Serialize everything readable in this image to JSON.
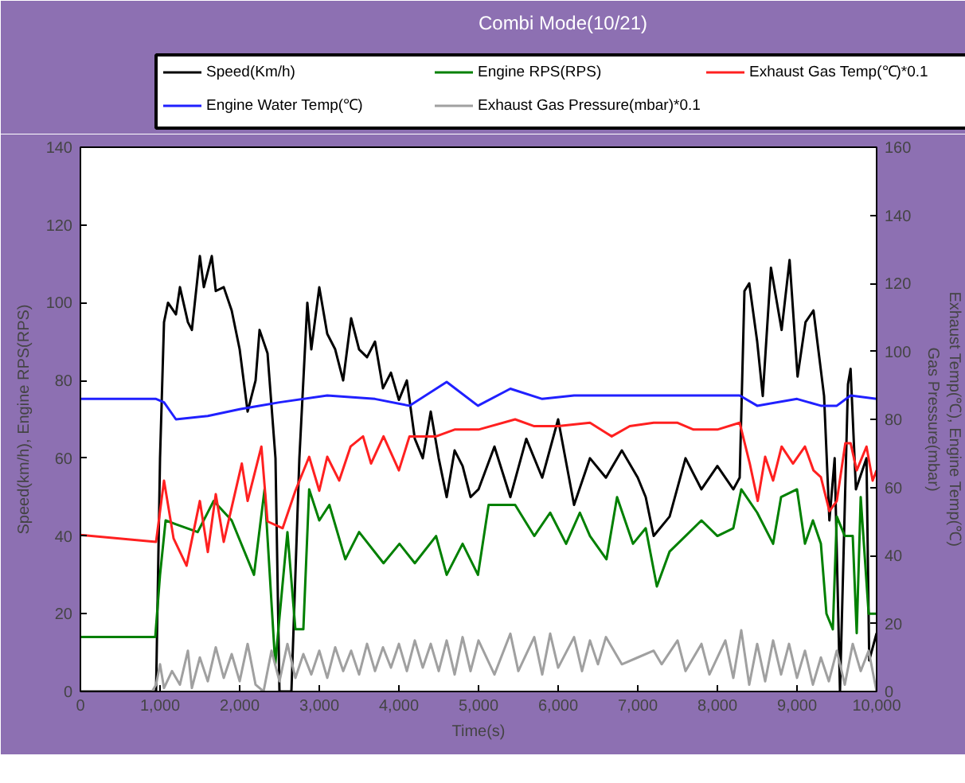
{
  "chart_data": {
    "type": "line",
    "title": "Combi Mode(10/21)",
    "xlabel": "Time(s)",
    "ylabel": "Speed(km/h), Engine RPS(RPS)",
    "y2label": "Exhaust Temp(℃), Engine Temp(℃)\nGas Pressure(mbar)",
    "xlim": [
      0,
      10000
    ],
    "xticks": [
      0,
      {
        "value": 1000,
        "label": "1,000"
      },
      {
        "value": 2000,
        "label": "2,000"
      },
      {
        "value": 3000,
        "label": "3,000"
      },
      {
        "value": 4000,
        "label": "4,000"
      },
      {
        "value": 5000,
        "label": "5,000"
      },
      {
        "value": 6000,
        "label": "6,000"
      },
      {
        "value": 7000,
        "label": "7,000"
      },
      {
        "value": 8000,
        "label": "8,000"
      },
      {
        "value": 9000,
        "label": "9,000"
      },
      {
        "value": 10000,
        "label": "10,000"
      }
    ],
    "ylim": [
      0,
      140
    ],
    "yticks": [
      0,
      20,
      40,
      60,
      80,
      100,
      120,
      140
    ],
    "y2lim": [
      0,
      160
    ],
    "y2ticks": [
      0,
      20,
      40,
      60,
      80,
      100,
      120,
      140,
      160
    ],
    "grid": false,
    "legend": "top",
    "marker": "none",
    "line_style": "solid",
    "series": [
      {
        "name": "Speed(Km/h)",
        "color": "#000000",
        "x": [
          0,
          950,
          1000,
          1050,
          1100,
          1200,
          1250,
          1350,
          1400,
          1500,
          1550,
          1650,
          1700,
          1800,
          1900,
          2000,
          2100,
          2200,
          2250,
          2350,
          2450,
          2500,
          2650,
          2750,
          2850,
          2900,
          3000,
          3100,
          3200,
          3300,
          3400,
          3500,
          3600,
          3700,
          3800,
          3900,
          4000,
          4100,
          4200,
          4300,
          4400,
          4500,
          4600,
          4700,
          4800,
          4900,
          5000,
          5200,
          5400,
          5600,
          5800,
          6000,
          6200,
          6400,
          6600,
          6800,
          7000,
          7100,
          7200,
          7400,
          7600,
          7800,
          8000,
          8200,
          8280,
          8340,
          8400,
          8500,
          8570,
          8673,
          8807,
          8907,
          9007,
          9107,
          9207,
          9340,
          9407,
          9473,
          9540,
          9640,
          9673,
          9740,
          9873,
          9907,
          10000
        ],
        "values": [
          0,
          0,
          60,
          95,
          100,
          97,
          104,
          95,
          93,
          112,
          104,
          112,
          103,
          104,
          98,
          88,
          72,
          80,
          93,
          87,
          60,
          0,
          0,
          60,
          100,
          88,
          104,
          92,
          88,
          80,
          96,
          88,
          86,
          90,
          78,
          82,
          75,
          80,
          65,
          60,
          72,
          60,
          50,
          62,
          58,
          50,
          52,
          63,
          50,
          65,
          55,
          70,
          48,
          60,
          55,
          62,
          55,
          50,
          40,
          45,
          60,
          52,
          58,
          52,
          55,
          103,
          105,
          90,
          76,
          109,
          93,
          111,
          81,
          95,
          98,
          76,
          44,
          60,
          0,
          79,
          83,
          52,
          60,
          8,
          15
        ]
      },
      {
        "name": "Engine RPS(RPS)",
        "color": "#008000",
        "x": [
          0,
          940,
          1000,
          1070,
          1200,
          1473,
          1673,
          1900,
          2180,
          2313,
          2447,
          2500,
          2600,
          2700,
          2800,
          2873,
          3000,
          3127,
          3327,
          3500,
          3807,
          4007,
          4200,
          4467,
          4600,
          4800,
          4993,
          5127,
          5460,
          5700,
          5900,
          6100,
          6273,
          6400,
          6607,
          6740,
          6940,
          7100,
          7240,
          7400,
          7600,
          7800,
          8000,
          8200,
          8300,
          8500,
          8700,
          8800,
          9000,
          9100,
          9200,
          9300,
          9370,
          9450,
          9500,
          9600,
          9700,
          9750,
          9800,
          9900,
          10000
        ],
        "values": [
          14,
          14,
          30,
          44,
          43,
          41,
          49,
          44,
          30,
          52,
          7,
          19,
          41,
          16,
          16,
          52,
          44,
          48,
          34,
          41,
          33,
          38,
          33,
          40,
          30,
          38,
          30,
          48,
          48,
          40,
          46,
          38,
          46,
          40,
          34,
          50,
          38,
          42,
          27,
          36,
          40,
          44,
          40,
          42,
          52,
          46,
          38,
          50,
          52,
          38,
          44,
          38,
          20,
          16,
          45,
          40,
          40,
          15,
          50,
          20,
          20
        ]
      },
      {
        "name": "Exhaust Gas Temp(℃)*0.1",
        "color": "#ff2020",
        "axis": "y2",
        "x": [
          0,
          950,
          1050,
          1170,
          1333,
          1500,
          1600,
          1700,
          1800,
          2027,
          2100,
          2273,
          2350,
          2540,
          2700,
          2873,
          3000,
          3100,
          3250,
          3393,
          3550,
          3650,
          3807,
          4000,
          4133,
          4467,
          4700,
          5000,
          5460,
          5700,
          6000,
          6400,
          6673,
          6900,
          7200,
          7500,
          7700,
          8000,
          8280,
          8407,
          8507,
          8600,
          8700,
          8807,
          8950,
          9100,
          9207,
          9300,
          9407,
          9500,
          9607,
          9673,
          9750,
          9873,
          9950,
          10000
        ],
        "values": [
          46,
          44,
          62,
          45,
          37,
          56,
          41,
          58,
          44,
          67,
          56,
          72,
          50,
          48,
          59,
          69,
          59,
          69,
          62,
          72,
          75,
          67,
          75,
          65,
          75,
          75,
          77,
          77,
          80,
          78,
          78,
          79,
          75,
          78,
          79,
          79,
          77,
          77,
          79,
          67,
          56,
          69,
          62,
          72,
          67,
          72,
          65,
          63,
          53,
          56,
          73,
          73,
          65,
          72,
          62,
          65
        ]
      },
      {
        "name": "Engine Water Temp(℃)",
        "color": "#2020ff",
        "axis": "y2",
        "x": [
          0,
          500,
          950,
          1050,
          1200,
          1600,
          2000,
          2500,
          3100,
          3700,
          4133,
          4600,
          4993,
          5400,
          5800,
          6200,
          7000,
          7800,
          8280,
          8500,
          9000,
          9300,
          9500,
          9673,
          10000
        ],
        "values": [
          86,
          86,
          86,
          85,
          80,
          81,
          83,
          85,
          87,
          86,
          84,
          91,
          84,
          89,
          86,
          87,
          87,
          87,
          87,
          84,
          86,
          84,
          84,
          87,
          86
        ]
      },
      {
        "name": "Exhaust Gas Pressure(mbar)*0.1",
        "color": "#a0a0a0",
        "axis": "y2",
        "x": [
          0,
          900,
          950,
          1000,
          1050,
          1150,
          1250,
          1350,
          1400,
          1500,
          1600,
          1700,
          1800,
          1900,
          2000,
          2100,
          2200,
          2300,
          2400,
          2500,
          2600,
          2700,
          2800,
          2900,
          3000,
          3100,
          3200,
          3300,
          3400,
          3500,
          3600,
          3700,
          3800,
          3900,
          4000,
          4100,
          4200,
          4300,
          4400,
          4500,
          4600,
          4700,
          4800,
          4900,
          5000,
          5200,
          5400,
          5500,
          5700,
          5800,
          5900,
          6000,
          6200,
          6300,
          6400,
          6500,
          6600,
          6800,
          7000,
          7200,
          7300,
          7500,
          7600,
          7800,
          7900,
          8100,
          8200,
          8300,
          8400,
          8500,
          8600,
          8700,
          8800,
          8900,
          9000,
          9100,
          9200,
          9300,
          9400,
          9500,
          9600,
          9700,
          9800,
          9900,
          10000
        ],
        "values": [
          0,
          0,
          2,
          8,
          1,
          6,
          2,
          12,
          1,
          10,
          3,
          13,
          4,
          11,
          3,
          14,
          2,
          0,
          12,
          3,
          14,
          4,
          11,
          5,
          12,
          4,
          13,
          6,
          12,
          5,
          14,
          6,
          13,
          7,
          14,
          6,
          15,
          7,
          14,
          6,
          15,
          5,
          16,
          6,
          15,
          5,
          17,
          6,
          16,
          5,
          17,
          7,
          16,
          6,
          15,
          8,
          16,
          8,
          10,
          12,
          8,
          15,
          6,
          14,
          5,
          15,
          4,
          18,
          2,
          14,
          3,
          15,
          5,
          14,
          4,
          12,
          2,
          10,
          3,
          12,
          2,
          14,
          6,
          12,
          0
        ]
      }
    ]
  }
}
